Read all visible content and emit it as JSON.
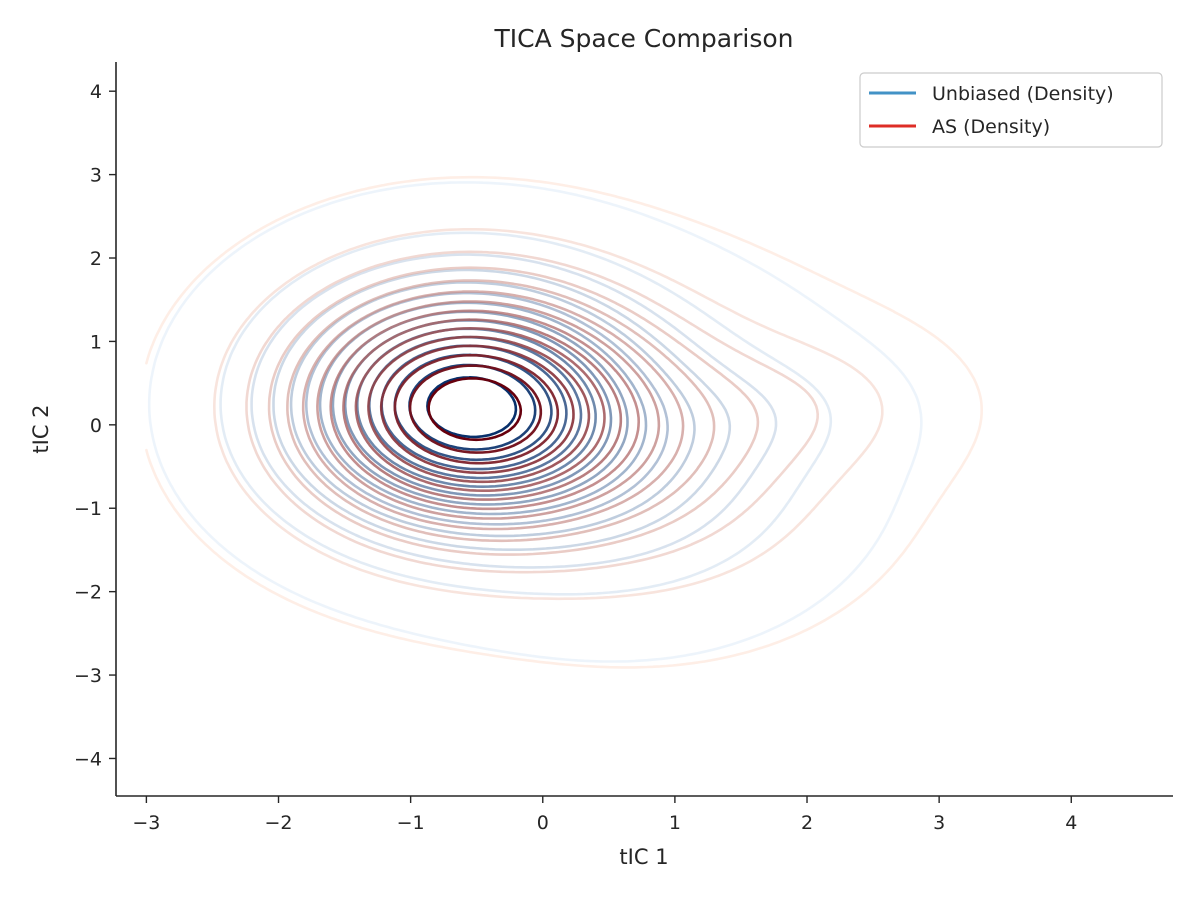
{
  "chart_data": {
    "type": "contour",
    "title": "TICA Space Comparison",
    "xlabel": "tIC 1",
    "ylabel": "tIC 2",
    "xlim": [
      -3.23,
      4.77
    ],
    "ylim": [
      -4.45,
      4.35
    ],
    "xticks": [
      -3,
      -2,
      -1,
      0,
      1,
      2,
      3,
      4
    ],
    "yticks": [
      -4,
      -3,
      -2,
      -1,
      0,
      1,
      2,
      3,
      4
    ],
    "xtick_labels": [
      "−3",
      "−2",
      "−1",
      "0",
      "1",
      "2",
      "3",
      "4"
    ],
    "ytick_labels": [
      "−4",
      "−3",
      "−2",
      "−1",
      "0",
      "1",
      "2",
      "3",
      "4"
    ],
    "grid": false,
    "legend": {
      "placement": "top-right"
    },
    "series": [
      {
        "name": "Unbiased (Density)",
        "legend_color": "#4292c6",
        "colormap": [
          "#deebf7",
          "#08306b"
        ],
        "levels": 15,
        "components": [
          {
            "mx": -0.62,
            "my": 0.25,
            "sx": 0.82,
            "sy": 0.92,
            "w": 1.0
          },
          {
            "mx": 0.65,
            "my": -0.4,
            "sx": 0.9,
            "sy": 1.05,
            "w": 0.22
          },
          {
            "mx": 1.75,
            "my": 0.15,
            "sx": 0.55,
            "sy": 0.45,
            "w": 0.05
          }
        ]
      },
      {
        "name": "AS (Density)",
        "legend_color": "#de2d26",
        "colormap": [
          "#fee0d2",
          "#67000d"
        ],
        "levels": 15,
        "components": [
          {
            "mx": -0.6,
            "my": 0.22,
            "sx": 0.85,
            "sy": 0.95,
            "w": 1.0
          },
          {
            "mx": 0.8,
            "my": -0.35,
            "sx": 0.95,
            "sy": 1.1,
            "w": 0.22
          },
          {
            "mx": 2.05,
            "my": 0.25,
            "sx": 0.65,
            "sy": 0.55,
            "w": 0.07
          }
        ]
      }
    ]
  }
}
